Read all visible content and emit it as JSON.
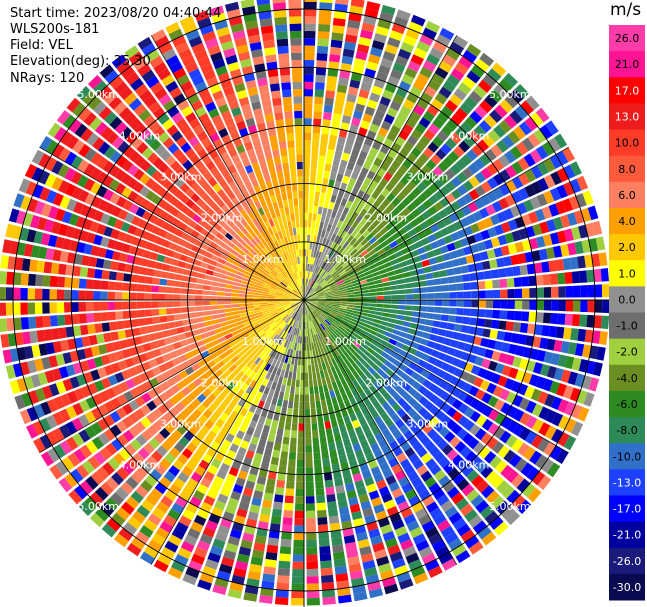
{
  "header": {
    "start_time": "Start time: 2023/08/20 04:40:44",
    "site": "WLS200s-181",
    "field": "Field: VEL",
    "elevation": "Elevation(deg): 35.30",
    "nrays": "NRays: 120"
  },
  "colorbar": {
    "unit": "m/s",
    "ticks": [
      "26.0",
      "21.0",
      "17.0",
      "13.0",
      "10.0",
      "8.0",
      "6.0",
      "4.0",
      "2.0",
      "1.0",
      "0.0",
      "-1.0",
      "-2.0",
      "-4.0",
      "-6.0",
      "-8.0",
      "-10.0",
      "-13.0",
      "-17.0",
      "-21.0",
      "-26.0",
      "-30.0"
    ],
    "colors": [
      "#ff3ca8",
      "#ff1493",
      "#ff0000",
      "#ee1c1c",
      "#ff3c28",
      "#ff5a3c",
      "#ff8060",
      "#ffa000",
      "#ffc800",
      "#ffff00",
      "#909090",
      "#6e6e6e",
      "#a0d040",
      "#6b8e23",
      "#2e8b22",
      "#2e8b57",
      "#3070c8",
      "#1e40ff",
      "#0000ff",
      "#0000a0",
      "#1a1a7a",
      "#0a0a50"
    ]
  },
  "chart_data": {
    "type": "heatmap",
    "projection": "polar-ppi",
    "title": "",
    "field": "VEL",
    "units": "m/s",
    "nrays": 120,
    "range_rings_km": [
      1,
      2,
      3,
      4,
      5
    ],
    "ring_labels": [
      "1.00km",
      "2.00km",
      "3.00km",
      "4.00km",
      "5.00km"
    ],
    "max_range_km": 5.25,
    "value_range": [
      -30,
      26
    ],
    "pattern": {
      "description_axis_azimuth_deg": 290,
      "peak_positive_mps": 17,
      "peak_negative_mps": -17,
      "clean_range_km": 3.0
    }
  }
}
